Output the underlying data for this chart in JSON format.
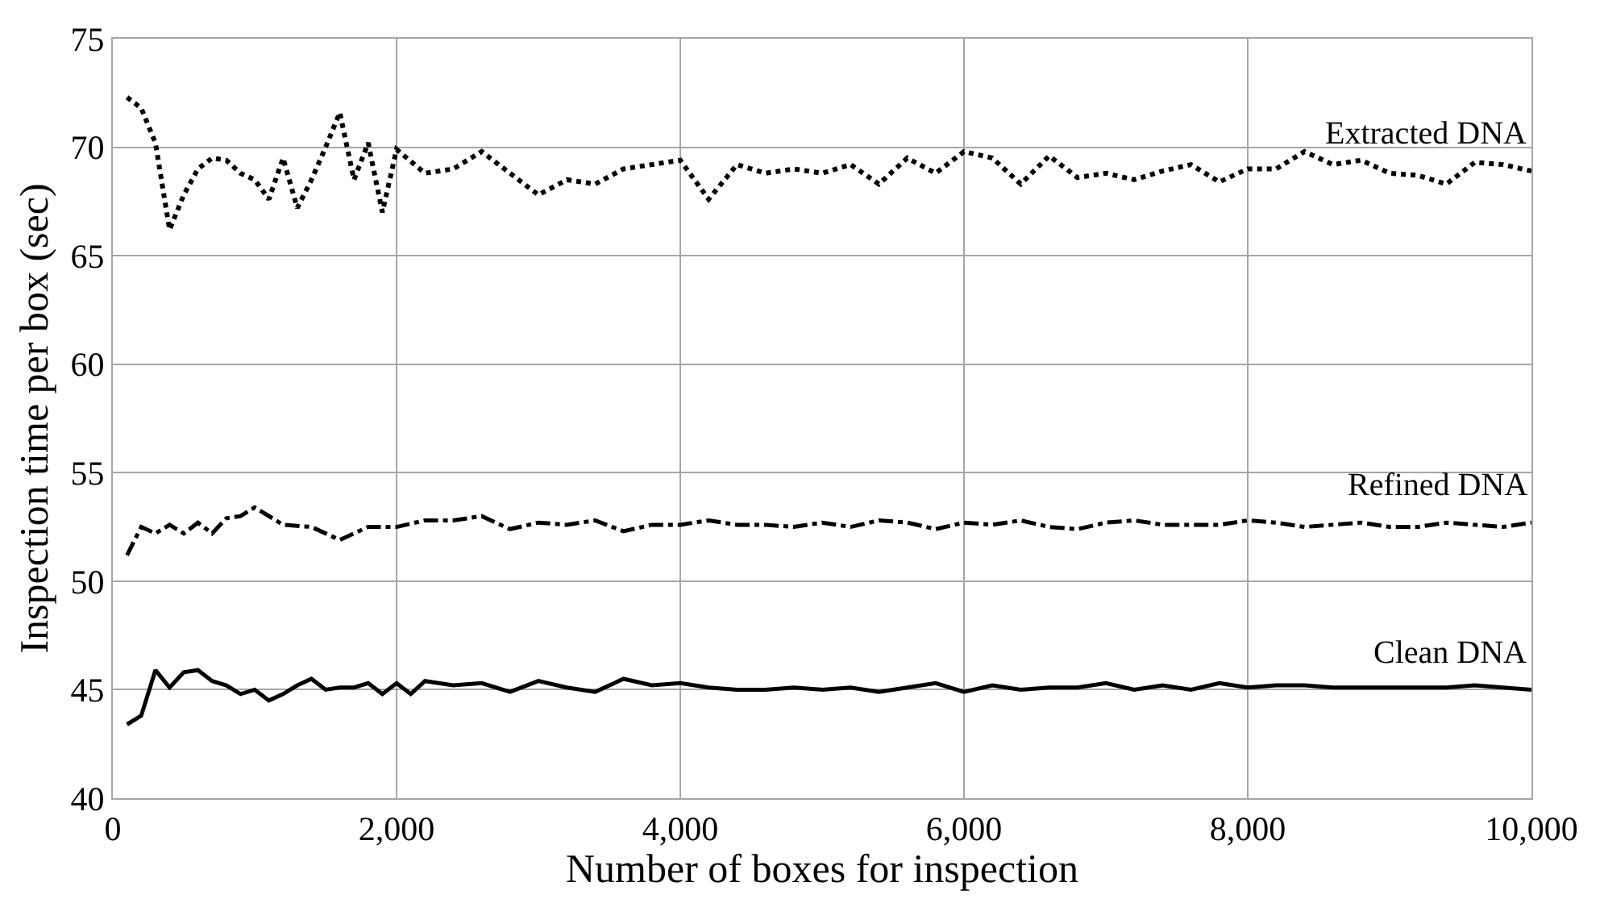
{
  "chart_data": {
    "type": "line",
    "xlabel": "Number of boxes for inspection",
    "ylabel": "Inspection time per box (sec)",
    "xlim": [
      0,
      10000
    ],
    "ylim": [
      40,
      75
    ],
    "xticks": [
      0,
      {
        "value": 2000,
        "label": "2,000"
      },
      {
        "value": 4000,
        "label": "4,000"
      },
      {
        "value": 6000,
        "label": "6,000"
      },
      {
        "value": 8000,
        "label": "8,000"
      },
      {
        "value": 10000,
        "label": "10,000"
      }
    ],
    "yticks": [
      40,
      45,
      50,
      55,
      60,
      65,
      70,
      75
    ],
    "grid": true,
    "legend": false,
    "marker": "none",
    "series": [
      {
        "name": "Extracted DNA",
        "color": "#000000",
        "line_style": "dotted",
        "x": [
          100,
          200,
          300,
          400,
          500,
          600,
          700,
          800,
          900,
          1000,
          1100,
          1200,
          1300,
          1400,
          1500,
          1600,
          1700,
          1800,
          1900,
          2000,
          2200,
          2400,
          2600,
          2800,
          3000,
          3200,
          3400,
          3600,
          3800,
          4000,
          4200,
          4400,
          4600,
          4800,
          5000,
          5200,
          5400,
          5600,
          5800,
          6000,
          6200,
          6400,
          6600,
          6800,
          7000,
          7200,
          7400,
          7600,
          7800,
          8000,
          8200,
          8400,
          8600,
          8800,
          9000,
          9200,
          9400,
          9600,
          9800,
          10000
        ],
        "values": [
          72.3,
          71.8,
          70.2,
          66.2,
          67.8,
          69.0,
          69.5,
          69.4,
          68.8,
          68.5,
          67.6,
          69.5,
          67.2,
          68.5,
          70.0,
          71.6,
          68.5,
          70.2,
          67.0,
          69.9,
          68.8,
          69.0,
          69.8,
          68.8,
          67.8,
          68.5,
          68.3,
          69.0,
          69.2,
          69.4,
          67.6,
          69.2,
          68.8,
          69.0,
          68.8,
          69.2,
          68.3,
          69.5,
          68.8,
          69.8,
          69.5,
          68.3,
          69.6,
          68.6,
          68.8,
          68.5,
          68.9,
          69.2,
          68.4,
          69.0,
          69.0,
          69.8,
          69.2,
          69.4,
          68.8,
          68.7,
          68.3,
          69.3,
          69.2,
          68.9
        ]
      },
      {
        "name": "Refined DNA",
        "color": "#000000",
        "line_style": "dashdot",
        "x": [
          100,
          200,
          300,
          400,
          500,
          600,
          700,
          800,
          900,
          1000,
          1200,
          1400,
          1600,
          1800,
          2000,
          2200,
          2400,
          2600,
          2800,
          3000,
          3200,
          3400,
          3600,
          3800,
          4000,
          4200,
          4400,
          4600,
          4800,
          5000,
          5200,
          5400,
          5600,
          5800,
          6000,
          6200,
          6400,
          6600,
          6800,
          7000,
          7200,
          7400,
          7600,
          7800,
          8000,
          8200,
          8400,
          8600,
          8800,
          9000,
          9200,
          9400,
          9600,
          9800,
          10000
        ],
        "values": [
          51.2,
          52.5,
          52.2,
          52.6,
          52.2,
          52.7,
          52.2,
          52.9,
          53.0,
          53.4,
          52.6,
          52.5,
          51.9,
          52.5,
          52.5,
          52.8,
          52.8,
          53.0,
          52.4,
          52.7,
          52.6,
          52.8,
          52.3,
          52.6,
          52.6,
          52.8,
          52.6,
          52.6,
          52.5,
          52.7,
          52.5,
          52.8,
          52.7,
          52.4,
          52.7,
          52.6,
          52.8,
          52.5,
          52.4,
          52.7,
          52.8,
          52.6,
          52.6,
          52.6,
          52.8,
          52.7,
          52.5,
          52.6,
          52.7,
          52.5,
          52.5,
          52.7,
          52.6,
          52.5,
          52.7
        ]
      },
      {
        "name": "Clean DNA",
        "color": "#000000",
        "line_style": "solid",
        "x": [
          100,
          200,
          300,
          400,
          500,
          600,
          700,
          800,
          900,
          1000,
          1100,
          1200,
          1300,
          1400,
          1500,
          1600,
          1700,
          1800,
          1900,
          2000,
          2100,
          2200,
          2400,
          2600,
          2800,
          3000,
          3200,
          3400,
          3600,
          3800,
          4000,
          4200,
          4400,
          4600,
          4800,
          5000,
          5200,
          5400,
          5600,
          5800,
          6000,
          6200,
          6400,
          6600,
          6800,
          7000,
          7200,
          7400,
          7600,
          7800,
          8000,
          8200,
          8400,
          8600,
          8800,
          9000,
          9200,
          9400,
          9600,
          9800,
          10000
        ],
        "values": [
          43.4,
          43.8,
          45.9,
          45.1,
          45.8,
          45.9,
          45.4,
          45.2,
          44.8,
          45.0,
          44.5,
          44.8,
          45.2,
          45.5,
          45.0,
          45.1,
          45.1,
          45.3,
          44.8,
          45.3,
          44.8,
          45.4,
          45.2,
          45.3,
          44.9,
          45.4,
          45.1,
          44.9,
          45.5,
          45.2,
          45.3,
          45.1,
          45.0,
          45.0,
          45.1,
          45.0,
          45.1,
          44.9,
          45.1,
          45.3,
          44.9,
          45.2,
          45.0,
          45.1,
          45.1,
          45.3,
          45.0,
          45.2,
          45.0,
          45.3,
          45.1,
          45.2,
          45.2,
          45.1,
          45.1,
          45.1,
          45.1,
          45.1,
          45.2,
          45.1,
          45.0
        ]
      }
    ]
  }
}
